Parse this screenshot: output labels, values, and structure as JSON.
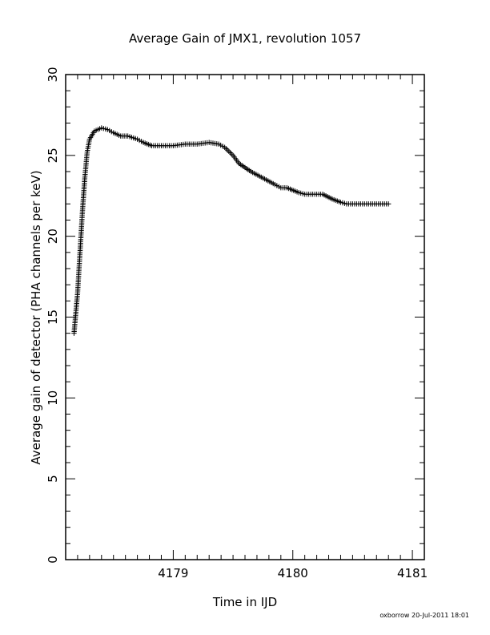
{
  "chart_data": {
    "type": "scatter",
    "title": "Average Gain of JMX1, revolution 1057",
    "xlabel": "Time in IJD",
    "ylabel": "Average gain of detector (PHA channels per keV)",
    "xlim": [
      4178.1,
      4181.1
    ],
    "ylim": [
      0,
      30
    ],
    "x_ticks": [
      4179,
      4180,
      4181
    ],
    "x_tick_labels": [
      "4179",
      "4180",
      "4181"
    ],
    "y_ticks": [
      0,
      5,
      10,
      15,
      20,
      25,
      30
    ],
    "y_tick_labels": [
      "0",
      "5",
      "10",
      "15",
      "20",
      "25",
      "30"
    ],
    "marker": "plus",
    "grid": false,
    "color": "#000000",
    "series": [
      {
        "x": [
          4178.17,
          4178.2,
          4178.22,
          4178.24,
          4178.26,
          4178.28,
          4178.3,
          4178.34,
          4178.4,
          4178.45,
          4178.5,
          4178.56,
          4178.62,
          4178.7,
          4178.75,
          4178.82,
          4178.9,
          4179.0,
          4179.1,
          4179.2,
          4179.3,
          4179.38,
          4179.43,
          4179.5,
          4179.55,
          4179.65,
          4179.75,
          4179.85,
          4179.9,
          4179.95,
          4180.05,
          4180.1,
          4180.2,
          4180.25,
          4180.33,
          4180.4,
          4180.45,
          4180.5,
          4180.6,
          4180.7,
          4180.8
        ],
        "y": [
          14.0,
          16.5,
          19.0,
          21.5,
          23.6,
          25.2,
          26.0,
          26.5,
          26.7,
          26.6,
          26.4,
          26.2,
          26.2,
          26.0,
          25.8,
          25.6,
          25.6,
          25.6,
          25.7,
          25.7,
          25.8,
          25.7,
          25.5,
          25.0,
          24.5,
          24.0,
          23.6,
          23.2,
          23.0,
          23.0,
          22.7,
          22.6,
          22.6,
          22.6,
          22.3,
          22.1,
          22.0,
          22.0,
          22.0,
          22.0,
          22.0
        ]
      }
    ]
  },
  "footer": {
    "credit": "oxborrow 20-Jul-2011 18:01"
  }
}
